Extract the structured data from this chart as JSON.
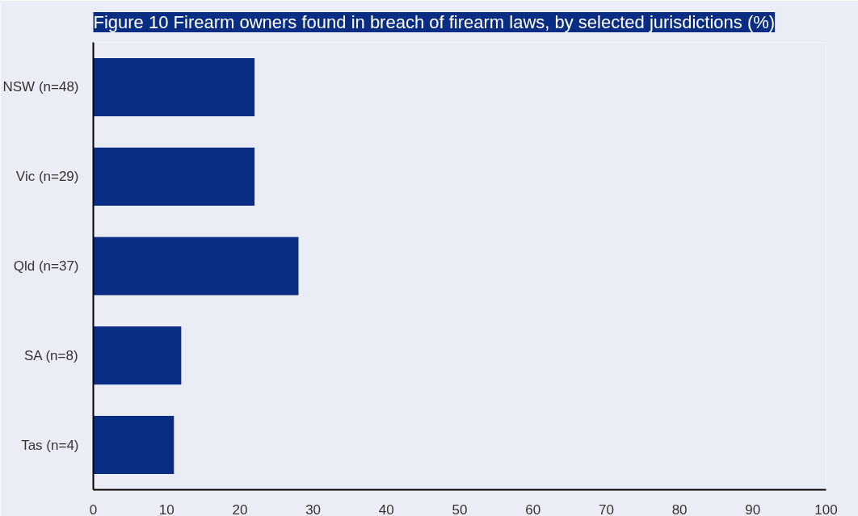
{
  "chart_data": {
    "type": "bar",
    "orientation": "horizontal",
    "title": "Figure 10 Firearm owners found in breach of firearm laws, by selected jurisdictions (%)",
    "categories": [
      "NSW (n=48)",
      "Vic (n=29)",
      "Qld (n=37)",
      "SA (n=8)",
      "Tas (n=4)"
    ],
    "values": [
      22,
      22,
      28,
      12,
      11
    ],
    "color": "#0a2d84",
    "xlim": [
      0,
      100
    ],
    "xticks": [
      0,
      10,
      20,
      30,
      40,
      50,
      60,
      70,
      80,
      90,
      100
    ],
    "grid": false
  }
}
